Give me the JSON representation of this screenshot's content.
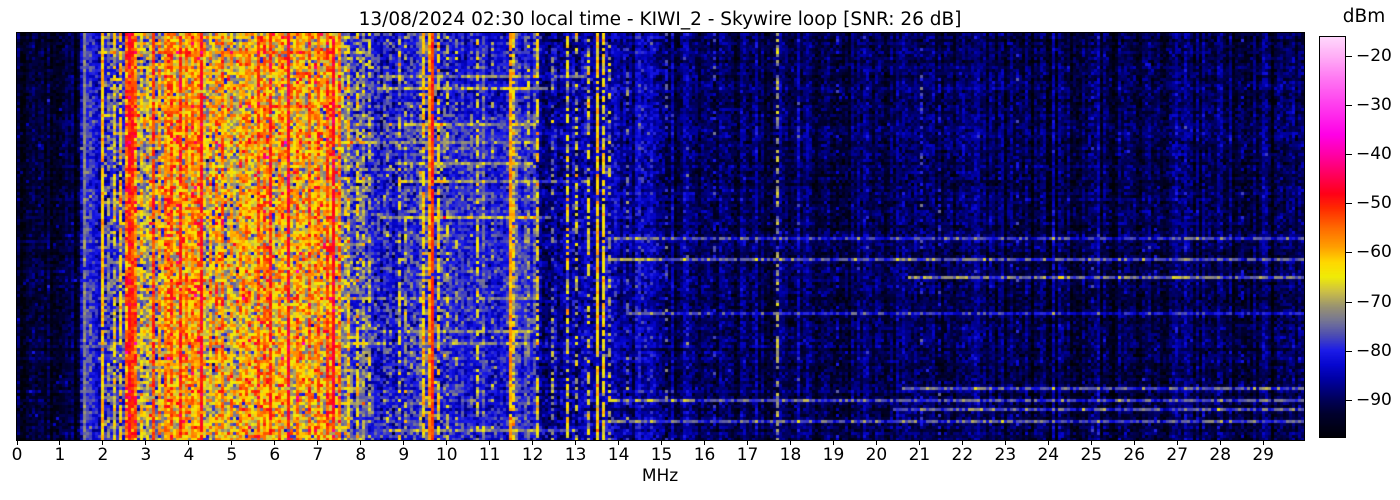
{
  "title": "13/08/2024 02:30 local time - KIWI_2 - Skywire loop [SNR: 26 dB]",
  "x_axis": {
    "label": "MHz",
    "ticks": [
      "0",
      "1",
      "2",
      "3",
      "4",
      "5",
      "6",
      "7",
      "8",
      "9",
      "10",
      "11",
      "12",
      "13",
      "14",
      "15",
      "16",
      "17",
      "18",
      "19",
      "20",
      "21",
      "22",
      "23",
      "24",
      "25",
      "26",
      "27",
      "28",
      "29"
    ]
  },
  "colorbar": {
    "label": "dBm",
    "ticks": [
      {
        "v": -20,
        "label": "−20"
      },
      {
        "v": -30,
        "label": "−30"
      },
      {
        "v": -40,
        "label": "−40"
      },
      {
        "v": -50,
        "label": "−50"
      },
      {
        "v": -60,
        "label": "−60"
      },
      {
        "v": -70,
        "label": "−70"
      },
      {
        "v": -80,
        "label": "−80"
      },
      {
        "v": -90,
        "label": "−90"
      }
    ]
  },
  "chart_data": {
    "type": "heatmap",
    "subtype": "radio-spectrum-waterfall",
    "title": "13/08/2024 02:30 local time - KIWI_2 - Skywire loop [SNR: 26 dB]",
    "datetime_local": "13/08/2024 02:30",
    "receiver": "KIWI_2",
    "antenna": "Skywire loop",
    "snr_db": 26,
    "xlabel": "MHz",
    "x_range_mhz": [
      0,
      29.95
    ],
    "value_unit": "dBm",
    "value_range": [
      -97.6,
      -16.1
    ],
    "grid_on": false,
    "seed": 1234,
    "colormap_stops": [
      [
        -98,
        "#000005"
      ],
      [
        -93,
        "#00002e"
      ],
      [
        -90,
        "#00005a"
      ],
      [
        -86,
        "#0000a2"
      ],
      [
        -83,
        "#0606cf"
      ],
      [
        -80,
        "#1c1ce8"
      ],
      [
        -77,
        "#4c4cb4"
      ],
      [
        -74,
        "#757594"
      ],
      [
        -71,
        "#9a9470"
      ],
      [
        -68,
        "#ccc046"
      ],
      [
        -65,
        "#f0ec06"
      ],
      [
        -62,
        "#ffd800"
      ],
      [
        -59,
        "#ffa000"
      ],
      [
        -55,
        "#ff6a00"
      ],
      [
        -51,
        "#ff2a00"
      ],
      [
        -48,
        "#ff0018"
      ],
      [
        -44,
        "#ff005e"
      ],
      [
        -40,
        "#ff00a6"
      ],
      [
        -36,
        "#ff00e6"
      ],
      [
        -30,
        "#ff3cee"
      ],
      [
        -25,
        "#ff72f2"
      ],
      [
        -20,
        "#ffaef6"
      ],
      [
        -16,
        "#ffd8fc"
      ]
    ],
    "noise_bands": [
      [
        0.0,
        1.5,
        -93.5,
        2.2,
        0.015,
        8
      ],
      [
        1.5,
        1.95,
        -82.0,
        3.0,
        0.02,
        6
      ],
      [
        1.95,
        2.5,
        -79.0,
        4.5,
        0.06,
        8
      ],
      [
        2.5,
        2.78,
        -55.0,
        5.0,
        0.1,
        6
      ],
      [
        2.78,
        3.4,
        -73.0,
        6.0,
        0.1,
        9
      ],
      [
        3.4,
        4.35,
        -63.0,
        6.0,
        0.12,
        7
      ],
      [
        4.35,
        5.15,
        -69.0,
        6.5,
        0.12,
        8
      ],
      [
        5.15,
        7.55,
        -65.0,
        6.5,
        0.12,
        7
      ],
      [
        7.55,
        8.15,
        -75.0,
        5.0,
        0.08,
        8
      ],
      [
        8.15,
        9.35,
        -81.0,
        4.0,
        0.03,
        7
      ],
      [
        9.35,
        9.95,
        -78.0,
        4.5,
        0.05,
        8
      ],
      [
        9.95,
        12.05,
        -81.0,
        3.2,
        0.01,
        5
      ],
      [
        12.05,
        13.9,
        -85.0,
        3.2,
        0.012,
        6
      ],
      [
        13.9,
        15.1,
        -87.0,
        2.8,
        0.01,
        5
      ],
      [
        15.1,
        21.0,
        -90.5,
        2.6,
        0.008,
        5
      ],
      [
        21.0,
        29.95,
        -91.5,
        2.6,
        0.008,
        5
      ]
    ],
    "carriers": [
      [
        1.54,
        -73,
        0.95,
        2
      ],
      [
        1.63,
        -79,
        0.6,
        3
      ],
      [
        1.72,
        -77,
        0.5,
        3
      ],
      [
        1.98,
        -61,
        0.97,
        2.5
      ],
      [
        2.13,
        -73,
        0.5,
        3
      ],
      [
        2.29,
        -66,
        0.7,
        4
      ],
      [
        2.42,
        -63,
        0.8,
        4
      ],
      [
        2.6,
        -50,
        0.95,
        3
      ],
      [
        2.7,
        -52,
        0.9,
        3
      ],
      [
        2.89,
        -63,
        0.7,
        4
      ],
      [
        3.05,
        -67,
        0.6,
        4
      ],
      [
        3.21,
        -52,
        0.93,
        3
      ],
      [
        3.33,
        -60,
        0.8,
        4
      ],
      [
        3.49,
        -57,
        0.8,
        4
      ],
      [
        3.63,
        -53,
        0.9,
        3.5
      ],
      [
        3.8,
        -50,
        0.93,
        3
      ],
      [
        3.96,
        -57,
        0.8,
        4
      ],
      [
        4.1,
        -59,
        0.7,
        4
      ],
      [
        4.28,
        -48,
        0.96,
        2.5
      ],
      [
        4.48,
        -60,
        0.7,
        4
      ],
      [
        4.64,
        -57,
        0.75,
        4
      ],
      [
        4.8,
        -55,
        0.8,
        4
      ],
      [
        5.0,
        -59,
        0.7,
        4
      ],
      [
        5.17,
        -61,
        0.6,
        4
      ],
      [
        5.36,
        -57,
        0.8,
        4
      ],
      [
        5.62,
        -53,
        0.85,
        4
      ],
      [
        5.77,
        -55,
        0.8,
        4
      ],
      [
        5.91,
        -50,
        0.9,
        3
      ],
      [
        6.08,
        -57,
        0.8,
        4
      ],
      [
        6.3,
        -48,
        0.96,
        2.5
      ],
      [
        6.56,
        -57,
        0.8,
        4
      ],
      [
        6.8,
        -54,
        0.85,
        4
      ],
      [
        7.02,
        -57,
        0.8,
        4
      ],
      [
        7.2,
        -52,
        0.85,
        3.5
      ],
      [
        7.34,
        -48,
        0.96,
        2.5
      ],
      [
        7.49,
        -57,
        0.8,
        4
      ],
      [
        7.71,
        -63,
        0.7,
        4
      ],
      [
        7.92,
        -66,
        0.6,
        4
      ],
      [
        8.18,
        -69,
        0.55,
        4
      ],
      [
        8.62,
        -74,
        0.4,
        4
      ],
      [
        8.91,
        -67,
        0.55,
        4
      ],
      [
        9.06,
        -70,
        0.5,
        4
      ],
      [
        9.46,
        -62,
        0.85,
        3
      ],
      [
        9.58,
        -59,
        0.95,
        2.5
      ],
      [
        9.67,
        -51,
        0.97,
        2
      ],
      [
        9.79,
        -64,
        0.7,
        3.5
      ],
      [
        10.0,
        -69,
        0.5,
        4
      ],
      [
        10.26,
        -73,
        0.4,
        4
      ],
      [
        10.7,
        -67,
        0.55,
        4
      ],
      [
        11.06,
        -72,
        0.4,
        4
      ],
      [
        11.48,
        -59,
        0.95,
        2.5
      ],
      [
        11.58,
        -64,
        0.7,
        3.5
      ],
      [
        11.9,
        -71,
        0.45,
        4
      ],
      [
        12.12,
        -65,
        0.6,
        4
      ],
      [
        12.46,
        -73,
        0.4,
        4
      ],
      [
        12.78,
        -65,
        0.6,
        4
      ],
      [
        13.01,
        -69,
        0.5,
        4
      ],
      [
        13.29,
        -67,
        0.55,
        4
      ],
      [
        13.54,
        -62,
        0.9,
        3
      ],
      [
        13.62,
        -64,
        0.8,
        3
      ],
      [
        13.82,
        -71,
        0.45,
        4
      ],
      [
        14.22,
        -76,
        0.4,
        4
      ],
      [
        14.57,
        -80,
        0.35,
        4
      ],
      [
        15.12,
        -79,
        0.4,
        4
      ],
      [
        15.57,
        -81,
        0.35,
        4
      ],
      [
        16.22,
        -83,
        0.3,
        4
      ],
      [
        17.7,
        -71,
        0.55,
        3
      ],
      [
        18.22,
        -84,
        0.3,
        4
      ],
      [
        19.06,
        -82,
        0.3,
        4
      ],
      [
        19.82,
        -84,
        0.25,
        4
      ],
      [
        21.06,
        -81,
        0.35,
        4
      ],
      [
        21.46,
        -83,
        0.3,
        4
      ],
      [
        23.26,
        -84,
        0.25,
        4
      ],
      [
        25.02,
        -85,
        0.25,
        4
      ],
      [
        26.52,
        -85,
        0.2,
        4
      ],
      [
        28.52,
        -85,
        0.25,
        4
      ]
    ],
    "streak_rows": [
      [
        0.045,
        1.9,
        8.1,
        6
      ],
      [
        0.1,
        8.4,
        13.2,
        10
      ],
      [
        0.135,
        8.4,
        12.3,
        11
      ],
      [
        0.175,
        1.9,
        7.6,
        6
      ],
      [
        0.22,
        8.6,
        12.1,
        8
      ],
      [
        0.27,
        1.9,
        12.0,
        7
      ],
      [
        0.315,
        8.8,
        12.0,
        9
      ],
      [
        0.36,
        9.0,
        13.3,
        10
      ],
      [
        0.415,
        1.9,
        7.6,
        6
      ],
      [
        0.45,
        8.5,
        12.4,
        11
      ],
      [
        0.505,
        13.8,
        29.9,
        12
      ],
      [
        0.555,
        13.8,
        29.9,
        14
      ],
      [
        0.6,
        20.8,
        29.9,
        15
      ],
      [
        0.655,
        1.9,
        12.2,
        7
      ],
      [
        0.69,
        14.2,
        29.9,
        11
      ],
      [
        0.73,
        8.5,
        12.0,
        8
      ],
      [
        0.765,
        1.9,
        12.6,
        7
      ],
      [
        0.875,
        20.6,
        29.9,
        15
      ],
      [
        0.9,
        13.8,
        29.9,
        12
      ],
      [
        0.925,
        20.4,
        29.9,
        16
      ],
      [
        0.955,
        13.8,
        29.9,
        13
      ],
      [
        0.975,
        8.5,
        13.0,
        9
      ]
    ],
    "patches": [
      [
        9.9,
        12.05,
        0.2,
        0.7,
        2.2
      ],
      [
        10.1,
        12.0,
        0.7,
        1.0,
        1.2
      ],
      [
        21.0,
        29.95,
        0.08,
        0.5,
        0.8
      ]
    ]
  }
}
